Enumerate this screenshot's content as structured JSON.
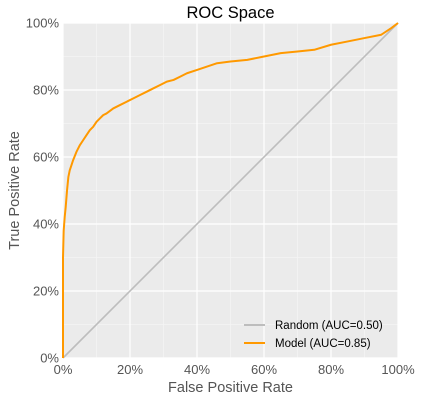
{
  "chart_data": {
    "type": "line",
    "title": "ROC Space",
    "xlabel": "False Positive Rate",
    "ylabel": "True Positive Rate",
    "xlim": [
      0,
      1
    ],
    "ylim": [
      0,
      1
    ],
    "grid": true,
    "legend_position": "bottom-right",
    "x_ticks": [
      {
        "value": 0,
        "label": "0%"
      },
      {
        "value": 0.2,
        "label": "20%"
      },
      {
        "value": 0.4,
        "label": "40%"
      },
      {
        "value": 0.6,
        "label": "60%"
      },
      {
        "value": 0.8,
        "label": "80%"
      },
      {
        "value": 1.0,
        "label": "100%"
      }
    ],
    "y_ticks": [
      {
        "value": 0,
        "label": "0%"
      },
      {
        "value": 0.2,
        "label": "20%"
      },
      {
        "value": 0.4,
        "label": "40%"
      },
      {
        "value": 0.6,
        "label": "60%"
      },
      {
        "value": 0.8,
        "label": "80%"
      },
      {
        "value": 1.0,
        "label": "100%"
      }
    ],
    "series": [
      {
        "name": "Random (AUC=0.50)",
        "color": "#bdbdbd",
        "x": [
          0,
          1
        ],
        "y": [
          0,
          1
        ]
      },
      {
        "name": "Model (AUC=0.85)",
        "color": "#ff9900",
        "x": [
          0,
          0,
          0.002,
          0.005,
          0.008,
          0.012,
          0.016,
          0.02,
          0.025,
          0.03,
          0.04,
          0.05,
          0.06,
          0.07,
          0.08,
          0.09,
          0.1,
          0.11,
          0.12,
          0.13,
          0.15,
          0.17,
          0.19,
          0.21,
          0.23,
          0.25,
          0.27,
          0.29,
          0.31,
          0.33,
          0.35,
          0.37,
          0.4,
          0.43,
          0.46,
          0.5,
          0.55,
          0.6,
          0.65,
          0.7,
          0.75,
          0.8,
          0.85,
          0.9,
          0.95,
          0.98,
          1.0
        ],
        "y": [
          0,
          0.3,
          0.38,
          0.42,
          0.45,
          0.5,
          0.54,
          0.56,
          0.575,
          0.59,
          0.615,
          0.635,
          0.65,
          0.665,
          0.68,
          0.69,
          0.705,
          0.715,
          0.725,
          0.73,
          0.745,
          0.755,
          0.765,
          0.775,
          0.785,
          0.795,
          0.805,
          0.815,
          0.825,
          0.83,
          0.84,
          0.85,
          0.86,
          0.87,
          0.88,
          0.885,
          0.89,
          0.9,
          0.91,
          0.915,
          0.92,
          0.935,
          0.945,
          0.955,
          0.965,
          0.985,
          1.0
        ]
      }
    ]
  }
}
